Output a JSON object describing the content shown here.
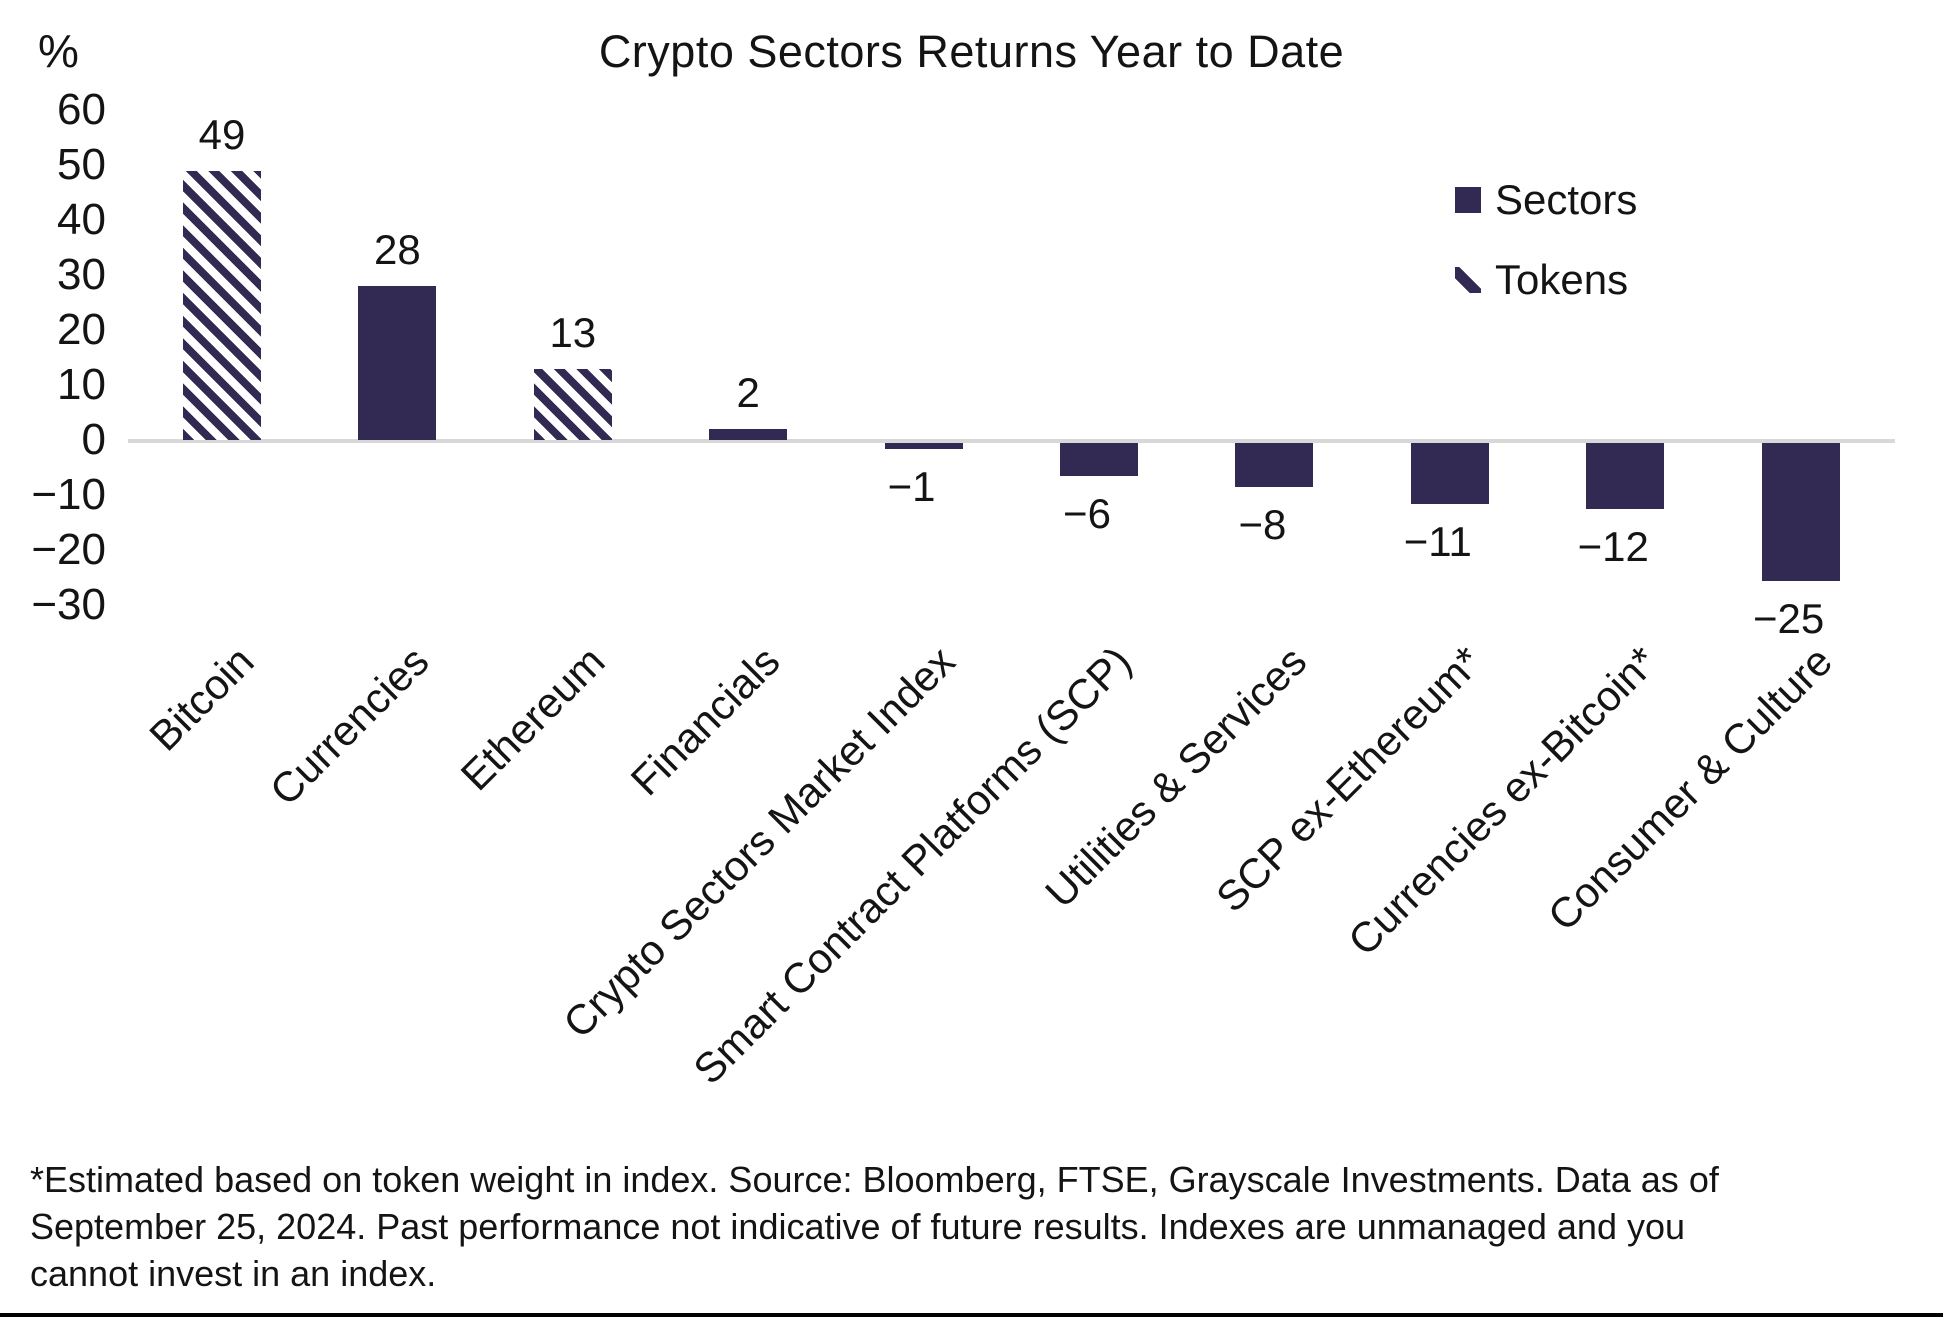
{
  "title": "Crypto Sectors Returns Year to Date",
  "y_axis_unit": "%",
  "legend": {
    "sectors_label": "Sectors",
    "tokens_label": "Tokens"
  },
  "footnote_lines": [
    "*Estimated based on token weight in index. Source: Bloomberg, FTSE, Grayscale Investments. Data as of",
    "September 25, 2024. Past performance not indicative of future results. Indexes are unmanaged and you",
    "cannot invest in an index."
  ],
  "colors": {
    "bar_solid": "#322a52",
    "hatch_stripe": "#322a52",
    "hatch_background": "#ffffff",
    "zero_line": "#d8d8d8",
    "text": "#141414",
    "bottom_rule": "#000000"
  },
  "chart_data": {
    "type": "bar",
    "title": "Crypto Sectors Returns Year to Date",
    "xlabel": "",
    "ylabel": "%",
    "ylim": [
      -30,
      60
    ],
    "yticks": [
      60,
      50,
      40,
      30,
      20,
      10,
      0,
      -10,
      -20,
      -30
    ],
    "grid": false,
    "legend_position": "upper-right",
    "legend_entries": [
      {
        "label": "Sectors",
        "style": "solid"
      },
      {
        "label": "Tokens",
        "style": "hatched"
      }
    ],
    "categories": [
      "Bitcoin",
      "Currencies",
      "Ethereum",
      "Financials",
      "Crypto Sectors Market Index",
      "Smart Contract Platforms (SCP)",
      "Utilities & Services",
      "SCP ex-Ethereum*",
      "Currencies ex-Bitcoin*",
      "Consumer & Culture"
    ],
    "series": [
      {
        "name": "Returns Year to Date (%)",
        "values": [
          49,
          28,
          13,
          2,
          -1,
          -6,
          -8,
          -11,
          -12,
          -25
        ]
      }
    ],
    "bar_styles": [
      "hatched",
      "solid",
      "hatched",
      "solid",
      "solid",
      "solid",
      "solid",
      "solid",
      "solid",
      "solid"
    ]
  }
}
